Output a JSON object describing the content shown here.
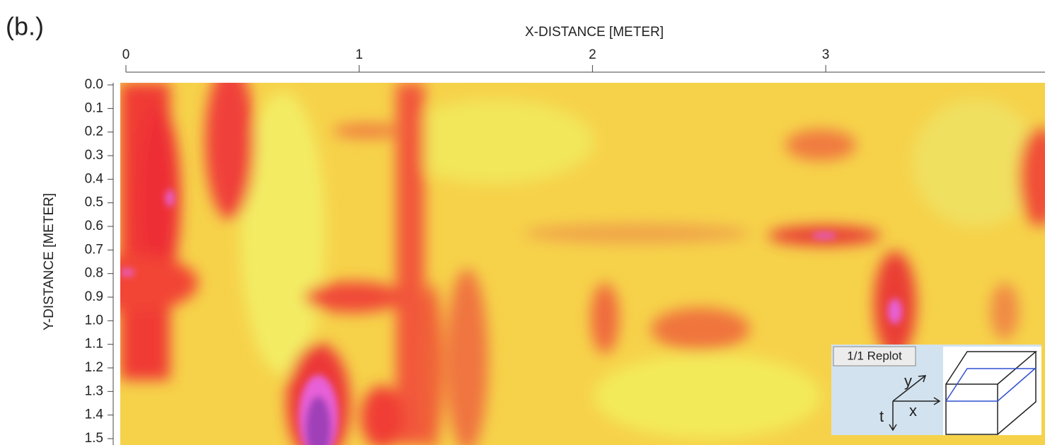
{
  "label": "(b.)",
  "chart_data": {
    "type": "heatmap",
    "xlabel": "X-DISTANCE [METER]",
    "ylabel": "Y-DISTANCE [METER]",
    "xlim": [
      0,
      3.94
    ],
    "xticks": [
      0,
      1,
      2,
      3
    ],
    "ylim": [
      0,
      1.5
    ],
    "y_inverted": true,
    "yticks": [
      {
        "value": 0,
        "label": "0.0"
      },
      0.1,
      0.2,
      0.3,
      0.4,
      0.5,
      0.6,
      0.7,
      0.8,
      0.9,
      {
        "value": 1,
        "label": "1.0"
      },
      1.1,
      1.2,
      1.3,
      1.4,
      1.5
    ]
  },
  "inset": {
    "button": "1/1 Replot",
    "axis_y": "y",
    "axis_x": "x",
    "axis_t": "t"
  }
}
